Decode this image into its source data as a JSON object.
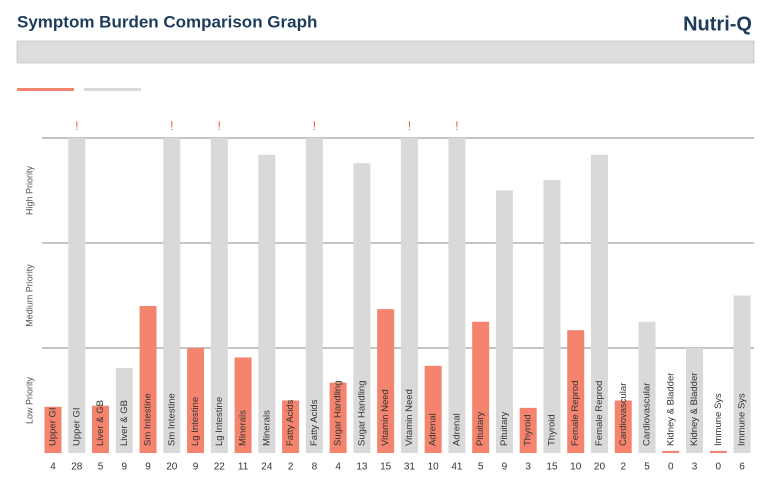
{
  "chart_data": {
    "type": "bar",
    "title": "Symptom Burden Comparison Graph",
    "brand": "Nutri-Q",
    "categories": [
      "Upper GI",
      "Liver & GB",
      "Sm Intestine",
      "Lg Intestine",
      "Minerals",
      "Fatty Acids",
      "Sugar Handling",
      "Vitamin Need",
      "Adrenal",
      "Pituitary",
      "Thyroid",
      "Female Reprod",
      "Cardiovascular",
      "Kidney & Bladder",
      "Immune Sys"
    ],
    "ylim": [
      0,
      3
    ],
    "yticks": [
      {
        "value": 0.5,
        "label": "Low Priority"
      },
      {
        "value": 1.5,
        "label": "Medium Priority"
      },
      {
        "value": 2.5,
        "label": "High Priority"
      }
    ],
    "grid_lines": [
      1,
      2,
      3
    ],
    "series": [
      {
        "color": "#f4846e",
        "values": [
          0.44,
          0.45,
          1.4,
          1.0,
          0.91,
          0.5,
          0.67,
          1.37,
          0.83,
          1.25,
          0.43,
          1.17,
          0.5,
          0.02,
          0.02
        ],
        "scores": [
          4,
          5,
          9,
          9,
          11,
          2,
          4,
          15,
          10,
          5,
          3,
          10,
          2,
          0,
          0
        ]
      },
      {
        "color": "#d9d9d9",
        "values": [
          3.0,
          0.81,
          3.0,
          3.0,
          2.84,
          3.0,
          2.76,
          3.0,
          3.0,
          2.5,
          2.6,
          2.84,
          1.25,
          1.0,
          1.5
        ],
        "scores": [
          28,
          9,
          20,
          22,
          24,
          8,
          13,
          31,
          41,
          9,
          15,
          20,
          5,
          3,
          6
        ],
        "markers": [
          "!",
          null,
          "!",
          "!",
          null,
          "!",
          null,
          "!",
          "!",
          null,
          null,
          null,
          null,
          null,
          null
        ]
      }
    ]
  }
}
